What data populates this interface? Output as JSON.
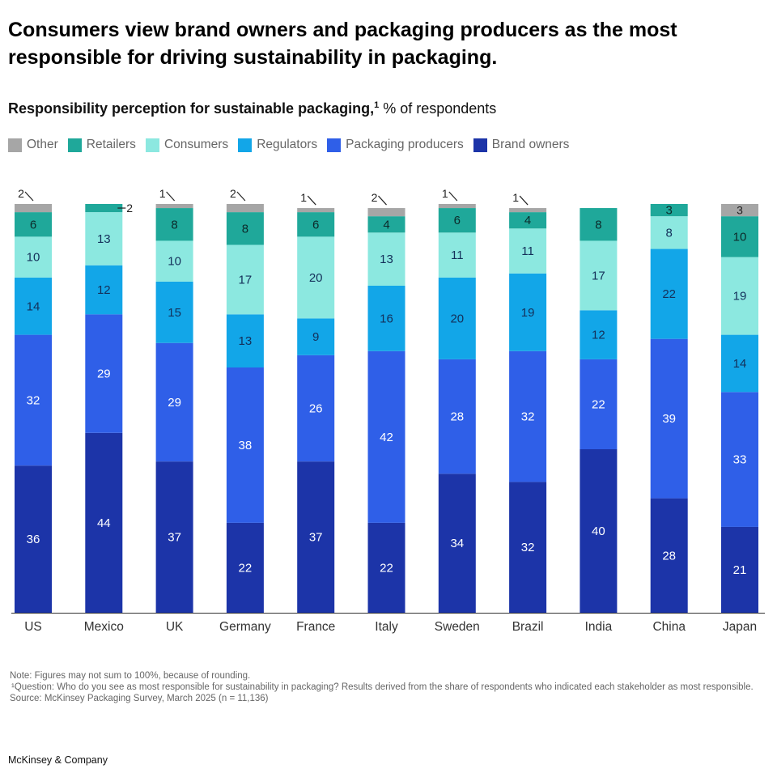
{
  "title": "Consumers view brand owners and packaging producers as the most responsible for driving sustainability in packaging.",
  "subtitle": {
    "main": "Responsibility perception for sustainable packaging,",
    "sup": "1",
    "rest": " % of respondents"
  },
  "colors": {
    "Other": "#a6a6a6",
    "Retailers": "#1fa89a",
    "Consumers": "#8ce8e0",
    "Regulators": "#12a6e8",
    "Packaging producers": "#2f5fe8",
    "Brand owners": "#1c34a8"
  },
  "chart_data": {
    "type": "bar",
    "stacked": true,
    "orientation": "vertical",
    "categories": [
      "US",
      "Mexico",
      "UK",
      "Germany",
      "France",
      "Italy",
      "Sweden",
      "Brazil",
      "India",
      "China",
      "Japan"
    ],
    "legend": [
      "Other",
      "Retailers",
      "Consumers",
      "Regulators",
      "Packaging producers",
      "Brand owners"
    ],
    "series": [
      {
        "name": "Brand owners",
        "values": [
          36,
          44,
          37,
          22,
          37,
          22,
          34,
          32,
          40,
          28,
          21
        ]
      },
      {
        "name": "Packaging producers",
        "values": [
          32,
          29,
          29,
          38,
          26,
          42,
          28,
          32,
          22,
          39,
          33
        ]
      },
      {
        "name": "Regulators",
        "values": [
          14,
          12,
          15,
          13,
          9,
          16,
          20,
          19,
          12,
          22,
          14
        ]
      },
      {
        "name": "Consumers",
        "values": [
          10,
          13,
          10,
          17,
          20,
          13,
          11,
          11,
          17,
          8,
          19
        ]
      },
      {
        "name": "Retailers",
        "values": [
          6,
          2,
          8,
          8,
          6,
          4,
          6,
          4,
          8,
          3,
          10
        ]
      },
      {
        "name": "Other",
        "values": [
          2,
          0,
          1,
          2,
          1,
          2,
          1,
          1,
          0,
          0,
          3
        ]
      }
    ],
    "ylim": [
      0,
      100
    ],
    "unit": "% of respondents"
  },
  "footnotes": {
    "note": "Note: Figures may not sum to 100%, because of rounding.",
    "question": "¹Question: Who do you see as most responsible for sustainability in packaging? Results derived from the share of respondents who indicated each stakeholder as most responsible.",
    "source": "Source: McKinsey Packaging Survey, March 2025 (n = 11,136)"
  },
  "brand": "McKinsey & Company"
}
